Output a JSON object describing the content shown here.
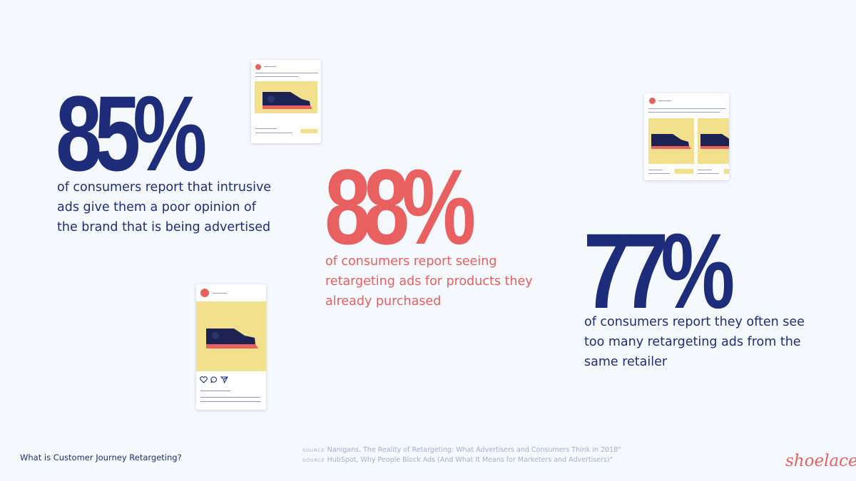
{
  "colors": {
    "navy": "#1e2d7a",
    "coral": "#e96060",
    "background": "#f5f8fc",
    "card_yellow": "#f3e08c"
  },
  "stats": [
    {
      "value": "85%",
      "description_lines": [
        "of consumers report that intrusive",
        "ads give them a poor opinion of",
        "the brand that is being advertised"
      ]
    },
    {
      "value": "88%",
      "description_lines": [
        "of consumers report seeing",
        "retargeting ads for products they",
        "already purchased"
      ]
    },
    {
      "value": "77%",
      "description_lines": [
        "of consumers report they often see",
        "too many retargeting ads from the",
        "same retailer"
      ]
    }
  ],
  "footer": {
    "title": "What is Customer Journey Retargeting?",
    "sources": [
      {
        "tag": "SOURCE",
        "text": "Nanigans, The Reality of Retargeting: What Advertisers and Consumers Think in 2018\""
      },
      {
        "tag": "SOURCE",
        "text": "HubSpot, Why People Block Ads (And What It Means for Marketers and Advertisers)\""
      }
    ],
    "logo": "shoelace"
  },
  "icons": [
    "shoe-icon",
    "heart-icon",
    "comment-icon",
    "share-icon"
  ]
}
